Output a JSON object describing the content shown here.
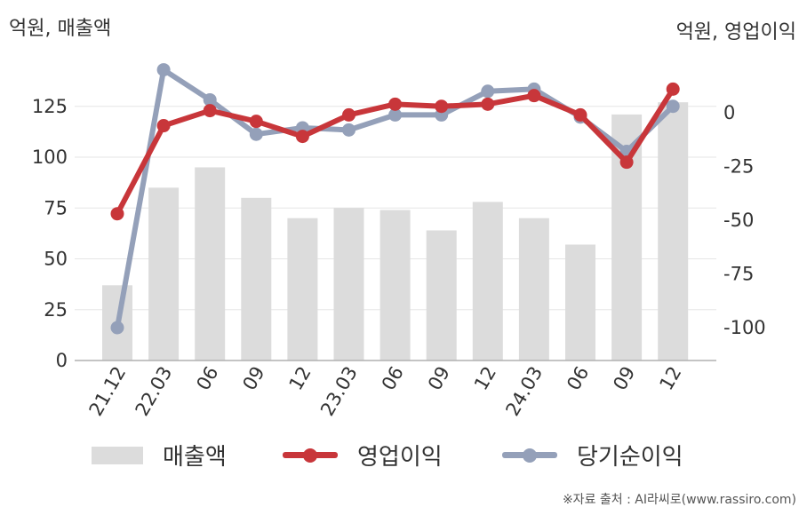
{
  "units": {
    "left": "억원, 매출액",
    "right": "억원, 영업이익"
  },
  "legend": {
    "bar_label": "매출액",
    "op_label": "영업이익",
    "net_label": "당기순이익"
  },
  "source": "※자료 출처 : AI라씨로(www.rassiro.com)",
  "colors": {
    "bar": "#dcdcdc",
    "op": "#c8363a",
    "net": "#94a0b9",
    "grid": "#e6e6e6",
    "axis": "#b0b0b0"
  },
  "chart_data": {
    "type": "bar",
    "categories": [
      "21.12",
      "22.03",
      "06",
      "09",
      "12",
      "23.03",
      "06",
      "09",
      "12",
      "24.03",
      "06",
      "09",
      "12"
    ],
    "series": [
      {
        "name": "매출액",
        "type": "bar",
        "axis": "left",
        "values": [
          37,
          85,
          95,
          80,
          70,
          75,
          74,
          64,
          78,
          70,
          57,
          121,
          127
        ]
      },
      {
        "name": "영업이익",
        "type": "line",
        "axis": "right",
        "values": [
          -47,
          -6,
          1,
          -4,
          -11,
          -1,
          4,
          3,
          4,
          8,
          -1,
          -23,
          11
        ]
      },
      {
        "name": "당기순이익",
        "type": "line",
        "axis": "right",
        "values": [
          -100,
          20,
          6,
          -10,
          -7,
          -8,
          -1,
          -1,
          10,
          11,
          -2,
          -18,
          3
        ]
      }
    ],
    "y_left": {
      "ticks": [
        "0",
        "25",
        "50",
        "75",
        "100",
        "125"
      ],
      "min": 0,
      "max": 125
    },
    "y_right": {
      "ticks": [
        "0",
        "-25",
        "-50",
        "-75",
        "-100"
      ],
      "min": -100,
      "max": 0
    },
    "grid": true,
    "legend_position": "bottom"
  }
}
